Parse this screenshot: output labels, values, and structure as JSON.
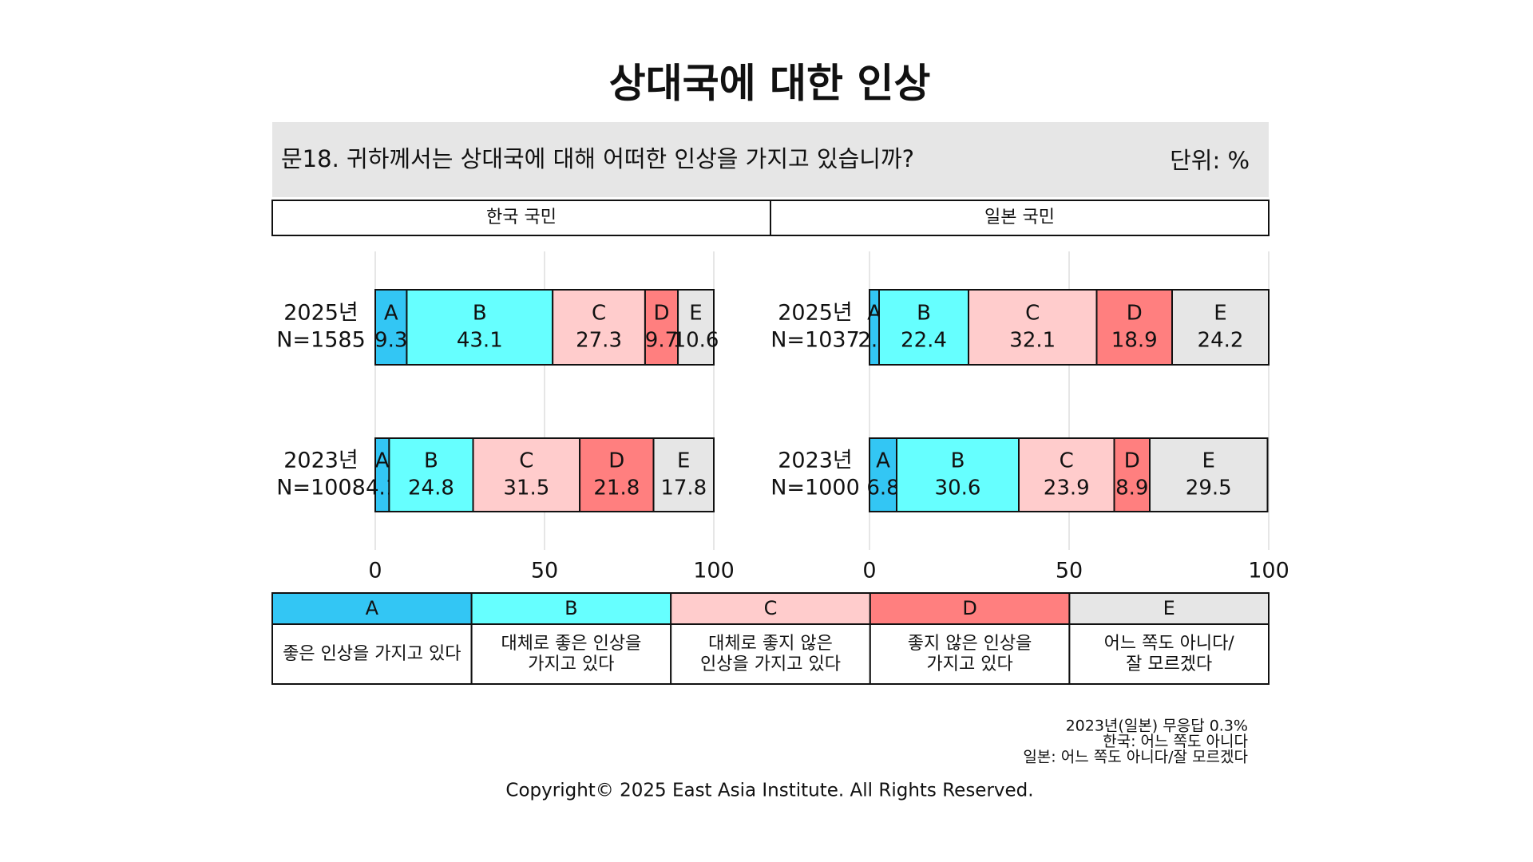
{
  "title": "상대국에 대한 인상",
  "question": "문18. 귀하께서는 상대국에 대해 어떠한 인상을 가지고 있습니까?",
  "unit": "단위: %",
  "chart_data": [
    {
      "type": "bar",
      "orientation": "horizontal",
      "stacked": true,
      "panel_title": "한국 국민",
      "categories": [
        "2025년",
        "2023년"
      ],
      "sample_sizes": [
        "N=1585",
        "N=1008"
      ],
      "xlim": [
        0,
        100
      ],
      "xticks": [
        0,
        50,
        100
      ],
      "grid": true,
      "series": [
        {
          "name": "A",
          "color": "#33c6f4",
          "values": [
            9.3,
            4.1
          ],
          "description": "좋은 인상을 가지고 있다"
        },
        {
          "name": "B",
          "color": "#66ffff",
          "values": [
            43.1,
            24.8
          ],
          "description": "대체로 좋은 인상을\n가지고 있다"
        },
        {
          "name": "C",
          "color": "#ffcccc",
          "values": [
            27.3,
            31.5
          ],
          "description": "대체로 좋지 않은\n인상을 가지고 있다"
        },
        {
          "name": "D",
          "color": "#ff7f7f",
          "values": [
            9.7,
            21.8
          ],
          "description": "좋지 않은 인상을\n가지고 있다"
        },
        {
          "name": "E",
          "color": "#e6e6e6",
          "values": [
            10.6,
            17.8
          ],
          "description": "어느 쪽도 아니다/\n잘 모르겠다"
        }
      ]
    },
    {
      "type": "bar",
      "orientation": "horizontal",
      "stacked": true,
      "panel_title": "일본 국민",
      "categories": [
        "2025년",
        "2023년"
      ],
      "sample_sizes": [
        "N=1037",
        "N=1000"
      ],
      "xlim": [
        0,
        100
      ],
      "xticks": [
        0,
        50,
        100
      ],
      "grid": true,
      "series": [
        {
          "name": "A",
          "color": "#33c6f4",
          "values": [
            2.4,
            6.8
          ]
        },
        {
          "name": "B",
          "color": "#66ffff",
          "values": [
            22.4,
            30.6
          ]
        },
        {
          "name": "C",
          "color": "#ffcccc",
          "values": [
            32.1,
            23.9
          ]
        },
        {
          "name": "D",
          "color": "#ff7f7f",
          "values": [
            18.9,
            8.9
          ]
        },
        {
          "name": "E",
          "color": "#e6e6e6",
          "values": [
            24.2,
            29.5
          ]
        }
      ]
    }
  ],
  "notes": [
    "2023년(일본) 무응답 0.3%",
    "한국: 어느 쪽도 아니다",
    "일본: 어느 쪽도 아니다/잘 모르겠다"
  ],
  "copyright": "Copyright© 2025 East Asia Institute. All Rights Reserved."
}
